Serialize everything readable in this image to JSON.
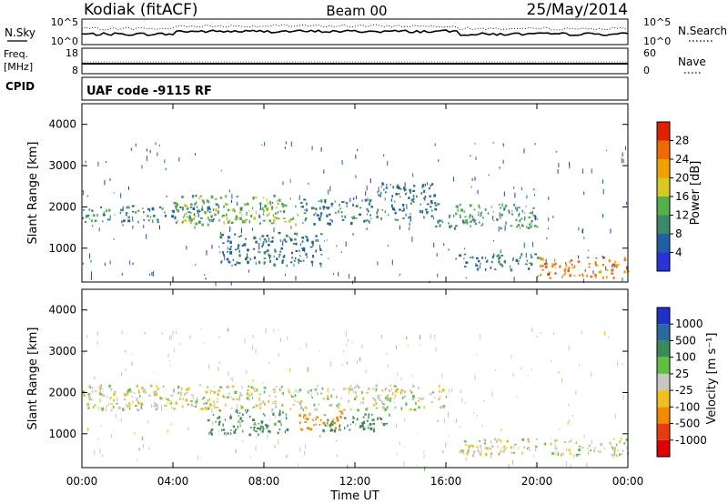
{
  "header": {
    "station": "Kodiak (fitACF)",
    "beam": "Beam 00",
    "date": "25/May/2014"
  },
  "summary": {
    "nsky_label": "N.Sky",
    "nsky_ticks": [
      "10^5",
      "10^0"
    ],
    "nsearch_label": "N.Search",
    "nsearch_ticks": [
      "10^5",
      "10^0"
    ],
    "freq_label_1": "Freq.",
    "freq_label_2": "[MHz]",
    "freq_ticks": [
      "18",
      "8"
    ],
    "nave_label": "Nave",
    "nave_ticks": [
      "60",
      "0"
    ],
    "cpid_label": "CPID",
    "cpid_text": "UAF code -9115 RF"
  },
  "axes": {
    "x_ticks": [
      "00:00",
      "04:00",
      "08:00",
      "12:00",
      "16:00",
      "20:00",
      "00:00"
    ],
    "x_label": "Time UT",
    "y_label": "Slant Range [km]",
    "y_ticks": [
      "1000",
      "2000",
      "3000",
      "4000"
    ]
  },
  "power_scale": {
    "label": "Power [dB]",
    "ticks": [
      "4",
      "8",
      "12",
      "16",
      "20",
      "24",
      "28"
    ],
    "colors": [
      "#2832d8",
      "#1f5fa8",
      "#3a8a6a",
      "#55b04a",
      "#d8c820",
      "#f2a000",
      "#f06a00",
      "#e02000"
    ]
  },
  "velocity_scale": {
    "label": "Velocity [m s⁻¹]",
    "ticks": [
      "1000",
      "500",
      "100",
      "25",
      "-25",
      "-100",
      "-500",
      "-1000"
    ],
    "colors": [
      "#2030c8",
      "#2a6aa0",
      "#3a8a5a",
      "#60c040",
      "#c8c8c0",
      "#f0c020",
      "#f08a00",
      "#e83a10",
      "#e00000"
    ]
  },
  "chart_data": [
    {
      "type": "heatmap",
      "title": "Power",
      "xlabel": "Time UT",
      "ylabel": "Slant Range [km]",
      "xlim": [
        "00:00",
        "24:00"
      ],
      "ylim": [
        180,
        4500
      ],
      "colorbar": {
        "label": "Power [dB]",
        "range": [
          0,
          30
        ]
      },
      "echo_regions": [
        {
          "t_start": 0.0,
          "t_end": 6.0,
          "range_low": 1650,
          "range_high": 2050,
          "power_db": 10
        },
        {
          "t_start": 4.0,
          "t_end": 9.5,
          "range_low": 1600,
          "range_high": 2300,
          "power_db": 14
        },
        {
          "t_start": 6.0,
          "t_end": 10.5,
          "range_low": 600,
          "range_high": 1400,
          "power_db": 8
        },
        {
          "t_start": 9.5,
          "t_end": 13.0,
          "range_low": 1600,
          "range_high": 2200,
          "power_db": 9
        },
        {
          "t_start": 13.0,
          "t_end": 15.5,
          "range_low": 1700,
          "range_high": 2600,
          "power_db": 8
        },
        {
          "t_start": 15.5,
          "t_end": 20.0,
          "range_low": 1500,
          "range_high": 2100,
          "power_db": 12
        },
        {
          "t_start": 16.5,
          "t_end": 20.0,
          "range_low": 500,
          "range_high": 900,
          "power_db": 10
        },
        {
          "t_start": 20.0,
          "t_end": 24.0,
          "range_low": 300,
          "range_high": 800,
          "power_db": 25
        }
      ]
    },
    {
      "type": "heatmap",
      "title": "Velocity",
      "xlabel": "Time UT",
      "ylabel": "Slant Range [km]",
      "xlim": [
        "00:00",
        "24:00"
      ],
      "ylim": [
        180,
        4500
      ],
      "colorbar": {
        "label": "Velocity [m s⁻¹]",
        "range": [
          -1000,
          1000
        ]
      },
      "echo_regions": [
        {
          "t_start": 0.0,
          "t_end": 16.0,
          "range_low": 1600,
          "range_high": 2200,
          "velocity": 0
        },
        {
          "t_start": 5.5,
          "t_end": 9.0,
          "range_low": 1000,
          "range_high": 1600,
          "velocity": 150
        },
        {
          "t_start": 9.5,
          "t_end": 11.5,
          "range_low": 1100,
          "range_high": 1600,
          "velocity": -150
        },
        {
          "t_start": 10.5,
          "t_end": 13.5,
          "range_low": 1100,
          "range_high": 1500,
          "velocity": 300
        },
        {
          "t_start": 16.5,
          "t_end": 24.0,
          "range_low": 500,
          "range_high": 900,
          "velocity": 0
        }
      ]
    }
  ]
}
